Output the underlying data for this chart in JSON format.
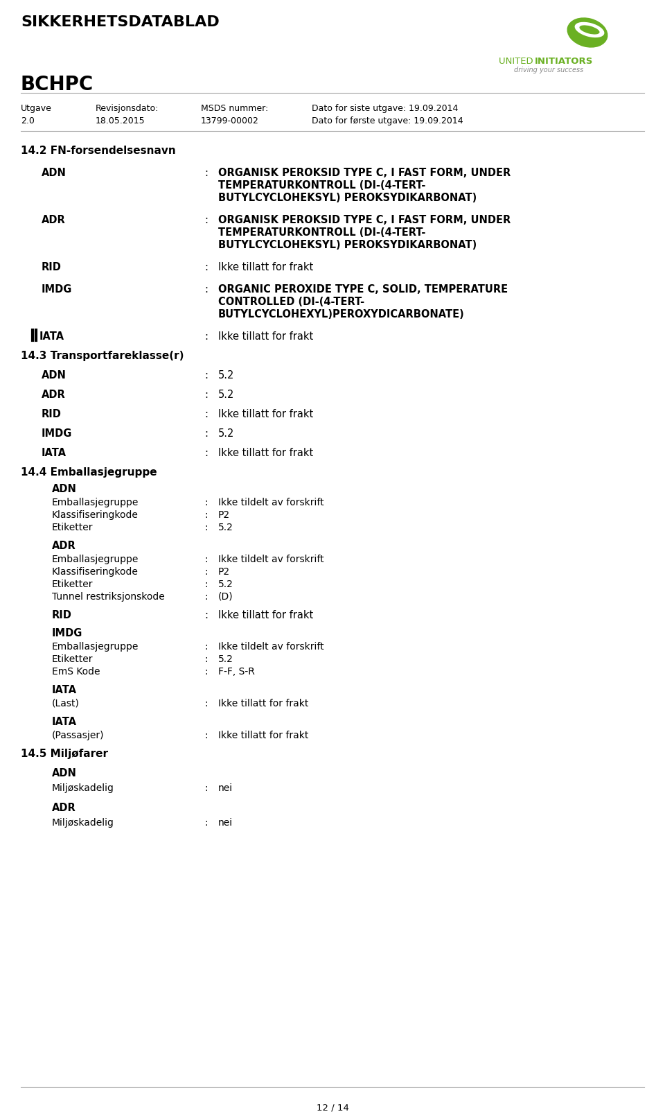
{
  "page_title": "SIKKERHETSDATABLAD",
  "product_name": "BCHPC",
  "header_fields": [
    [
      "Utgave",
      "Revisjonsdato:",
      "MSDS nummer:",
      "Dato for siste utgave: 19.09.2014"
    ],
    [
      "2.0",
      "18.05.2015",
      "13799-00002",
      "Dato for første utgave: 19.09.2014"
    ]
  ],
  "section_14_2_title": "14.2 FN-forsendelsesnavn",
  "section_14_3_title": "14.3 Transportfareklasse(r)",
  "section_14_4_title": "14.4 Emballasjegruppe",
  "section_14_5_title": "14.5 Miljøfarer",
  "footer_text": "12 / 14",
  "bg_color": "#ffffff",
  "text_color": "#000000",
  "green_color": "#6ab023",
  "gray_color": "#808080"
}
